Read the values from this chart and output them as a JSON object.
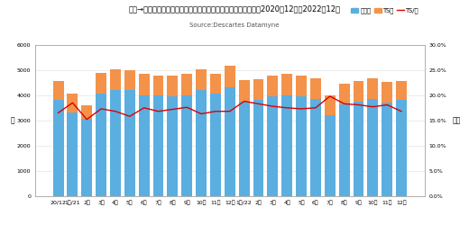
{
  "title": "米国→日本海上コンテナ貨物量推移　最終仕向地ベース　身入り2020年12月〜2022年12月",
  "source": "Source:Descartes Datamyne",
  "ylabel_left": "箱",
  "ylabel_right": "比率",
  "legend_direct": "直航分",
  "legend_ts": "TS分",
  "legend_ratio": "TS/率",
  "bar_color_direct": "#5BAEE0",
  "bar_color_ts": "#F4924A",
  "line_color": "#DD0000",
  "categories": [
    "20/12",
    "1月/21",
    "2月",
    "3月",
    "4月",
    "5月",
    "6月",
    "7月",
    "8月",
    "9月",
    "10月",
    "11月",
    "12月",
    "1月/22",
    "2月",
    "3月",
    "4月",
    "5月",
    "6月",
    "7月",
    "8月",
    "9月",
    "10月",
    "11月",
    "12月"
  ],
  "direct": [
    3800,
    3300,
    3050,
    4050,
    4200,
    4200,
    4000,
    4000,
    3950,
    4000,
    4200,
    4050,
    4300,
    3750,
    3800,
    3950,
    4000,
    3950,
    3850,
    3200,
    3650,
    3750,
    3850,
    3700,
    3800
  ],
  "ts": [
    750,
    750,
    550,
    850,
    850,
    800,
    850,
    800,
    820,
    850,
    820,
    820,
    870,
    870,
    850,
    850,
    850,
    830,
    820,
    800,
    820,
    830,
    830,
    820,
    770
  ],
  "ratio": [
    16.5,
    18.5,
    15.2,
    17.3,
    16.8,
    15.8,
    17.5,
    16.8,
    17.2,
    17.6,
    16.3,
    16.8,
    16.8,
    18.8,
    18.3,
    17.8,
    17.5,
    17.3,
    17.5,
    19.8,
    18.3,
    18.1,
    17.7,
    18.1,
    16.8
  ],
  "ylim_left": [
    0,
    6000
  ],
  "ylim_right": [
    0,
    30
  ],
  "yticks_left": [
    0,
    1000,
    2000,
    3000,
    4000,
    5000,
    6000
  ],
  "ytick_labels_left": [
    "0",
    "1000",
    "2000",
    "3000",
    "4000",
    "5000",
    "6000"
  ],
  "yticks_right": [
    0,
    5,
    10,
    15,
    20,
    25,
    30
  ],
  "ytick_labels_right": [
    "0.0%",
    "5.0%",
    "10.0%",
    "15.0%",
    "20.0%",
    "25.0%",
    "30.0%"
  ],
  "bg_color": "#ffffff",
  "grid_color": "#dddddd"
}
